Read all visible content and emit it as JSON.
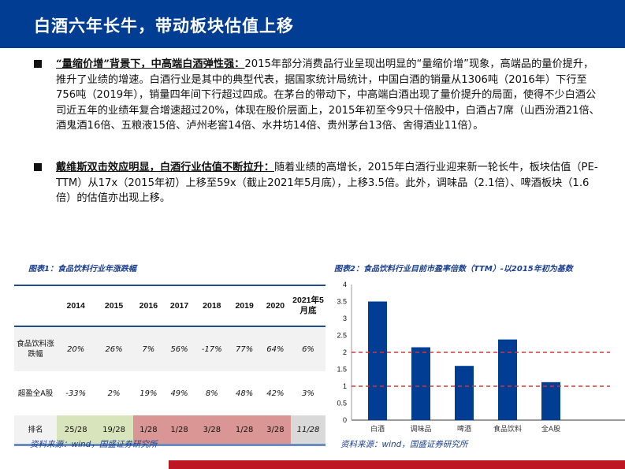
{
  "header": {
    "title": "白酒六年长牛，带动板块估值上移"
  },
  "bullets": [
    {
      "head": "“量缩价增”背景下，中高端白酒弹性强：",
      "body": "2015年部分消费品行业呈现出明显的“量缩价增”现象，高端品的量价提升，推升了业绩的增速。白酒行业是其中的典型代表，据国家统计局统计，中国白酒的销量从1306吨（2016年）下行至756吨（2019年），销量四年间下行超过四成。在茅台的带动下，中高端白酒出现了量价提升的局面，使得不少白酒公司近五年的业绩年复合增速超过20%，体现在股价层面上，2015年初至今9只十倍股中，白酒占7席（山西汾酒21倍、酒鬼酒16倍、五粮液15倍、泸州老窖14倍、水井坊14倍、贵州茅台13倍、舍得酒业11倍）。"
    },
    {
      "head": "戴维斯双击效应明显，白酒行业估值不断拉升：",
      "body": "随着业绩的高增长，2015年白酒行业迎来新一轮长牛，板块估值（PE-TTM）从17x（2015年初）上移至59x（截止2021年5月底），上移3.5倍。此外，调味品（2.1倍）、啤酒板块（1.6倍）的估值亦出现上移。"
    }
  ],
  "figure1": {
    "title": "图表1：食品饮料行业年涨跌幅",
    "columns": [
      "",
      "2014",
      "2015",
      "2016",
      "2017",
      "2018",
      "2019",
      "2020",
      "2021年5月底"
    ],
    "rows": [
      {
        "label": "食品饮料涨跌幅",
        "values": [
          "20%",
          "26%",
          "7%",
          "56%",
          "-17%",
          "77%",
          "64%",
          "6%"
        ]
      },
      {
        "label": "超盈全A股",
        "values": [
          "-33%",
          "2%",
          "19%",
          "49%",
          "8%",
          "48%",
          "42%",
          "3%"
        ]
      },
      {
        "label": "排名",
        "values": [
          "25/28",
          "19/28",
          "1/28",
          "1/28",
          "3/28",
          "1/28",
          "3/28",
          "11/28"
        ]
      }
    ],
    "source": "资料来源：wind，国盛证券研究所"
  },
  "figure2": {
    "title": "图表2：食品饮料行业目前市盈率倍数（TTM）-以2015年初为基数",
    "source": "资料来源：wind，国盛证券研究所"
  },
  "chart_data": {
    "type": "bar",
    "title": "图表2：食品饮料行业目前市盈率倍数（TTM）-以2015年初为基数",
    "categories": [
      "白酒",
      "调味品",
      "啤酒",
      "食品饮料",
      "全A股"
    ],
    "values": [
      3.5,
      2.15,
      1.6,
      2.38,
      1.12
    ],
    "xlabel": "",
    "ylabel": "",
    "ylim": [
      0,
      4
    ],
    "yticks": [
      0,
      0.5,
      1,
      1.5,
      2,
      2.5,
      3,
      3.5,
      4
    ],
    "reference_lines": [
      1,
      2
    ],
    "bar_color": "#003d93",
    "reference_line_color": "#d0383a",
    "grid": false
  }
}
